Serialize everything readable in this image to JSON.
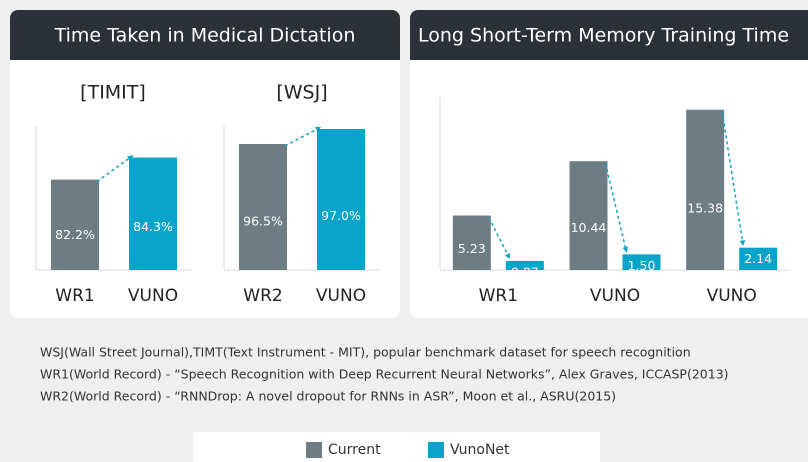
{
  "panels": [
    {
      "title": "Time Taken in Medical Dictation"
    },
    {
      "title": "Long Short-Term Memory Training Time"
    }
  ],
  "chart_data": [
    {
      "type": "bar",
      "title": "[TIMIT]",
      "categories": [
        "WR1",
        "VUNO"
      ],
      "ylim": [
        73.6,
        87.3
      ],
      "series": [
        {
          "name": "Current",
          "color": "#6e7c84",
          "values": [
            82.2,
            null
          ],
          "value_labels": [
            "82.2%",
            null
          ]
        },
        {
          "name": "VunoNet",
          "color": "#0aa3c9",
          "values": [
            null,
            84.3
          ],
          "value_labels": [
            null,
            "84.3%"
          ]
        }
      ]
    },
    {
      "type": "bar",
      "title": "[WSJ]",
      "categories": [
        "WR2",
        "VUNO"
      ],
      "ylim": [
        92.3,
        97.1
      ],
      "series": [
        {
          "name": "Current",
          "color": "#6e7c84",
          "values": [
            96.5,
            null
          ],
          "value_labels": [
            "96.5%",
            null
          ]
        },
        {
          "name": "VunoNet",
          "color": "#0aa3c9",
          "values": [
            null,
            97.0
          ],
          "value_labels": [
            null,
            "97.0%"
          ]
        }
      ]
    },
    {
      "type": "bar",
      "categories": [
        "WR1",
        "VUNO",
        "VUNO"
      ],
      "ylim": [
        0,
        16.6
      ],
      "series": [
        {
          "name": "Current",
          "color": "#6e7c84",
          "values": [
            5.23,
            10.44,
            15.38
          ],
          "value_labels": [
            "5.23",
            "10.44",
            "15.38"
          ]
        },
        {
          "name": "VunoNet",
          "color": "#0aa3c9",
          "values": [
            0.87,
            1.5,
            2.14
          ],
          "value_labels": [
            "0.87",
            "1.50",
            "2.14"
          ]
        }
      ]
    }
  ],
  "notes": [
    "WSJ(Wall Street Journal),TIMT(Text Instrument - MIT), popular benchmark dataset for speech recognition",
    "WR1(World Record) - “Speech Recognition with Deep Recurrent Neural Networks”, Alex Graves, ICCASP(2013)",
    "WR2(World Record) - “RNNDrop: A novel dropout for RNNs in ASR”, Moon et al., ASRU(2015)"
  ]
}
